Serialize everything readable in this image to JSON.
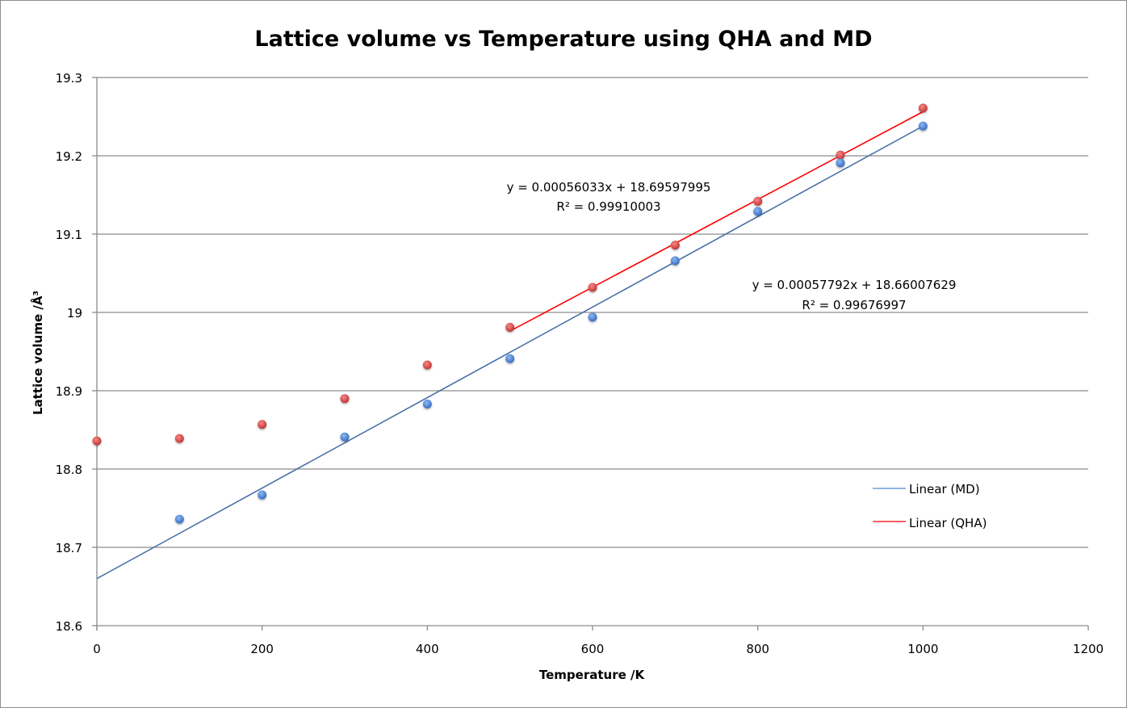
{
  "chart_data": {
    "type": "scatter",
    "title": "Lattice volume vs Temperature using QHA and MD",
    "xlabel": "Temperature /K",
    "ylabel": "Lattice volume /Å³",
    "xlim": [
      0,
      1200
    ],
    "ylim": [
      18.6,
      19.3
    ],
    "x_ticks": [
      0,
      200,
      400,
      600,
      800,
      1000,
      1200
    ],
    "x_tick_labels": [
      "0",
      "200",
      "400",
      "600",
      "800",
      "1000",
      "1200"
    ],
    "y_ticks": [
      18.6,
      18.7,
      18.8,
      18.9,
      19.0,
      19.1,
      19.2,
      19.3
    ],
    "y_tick_labels": [
      "18.6",
      "18.7",
      "18.8",
      "18.9",
      "19",
      "19.1",
      "19.2",
      "19.3"
    ],
    "grid": "horizontal",
    "legend_position": "right",
    "series": [
      {
        "name": "QHA",
        "color": "#d94c4c",
        "x": [
          0,
          100,
          200,
          300,
          400,
          500,
          600,
          700,
          800,
          900,
          1000
        ],
        "y": [
          18.836,
          18.839,
          18.857,
          18.89,
          18.933,
          18.981,
          19.032,
          19.086,
          19.142,
          19.201,
          19.261
        ]
      },
      {
        "name": "MD",
        "color": "#4f86d6",
        "x": [
          100,
          200,
          300,
          400,
          500,
          600,
          700,
          800,
          900,
          1000
        ],
        "y": [
          18.736,
          18.767,
          18.841,
          18.883,
          18.941,
          18.994,
          19.066,
          19.129,
          19.191,
          19.238
        ]
      }
    ],
    "trendlines": [
      {
        "name": "Linear (MD)",
        "color": "#4a72a8",
        "slope": 0.00057792,
        "intercept": 18.66007629,
        "x_range": [
          0,
          1000
        ],
        "equation": "y = 0.00057792x + 18.66007629",
        "r_squared": "R² = 0.99676997"
      },
      {
        "name": "Linear (QHA)",
        "color": "#ff0000",
        "slope": 0.00056033,
        "intercept": 18.69597995,
        "x_range": [
          500,
          1000
        ],
        "equation": "y = 0.00056033x + 18.69597995",
        "r_squared": "R² = 0.99910003"
      }
    ],
    "legend": [
      {
        "label": "Linear (MD)",
        "color": "#4a72a8"
      },
      {
        "label": "Linear (QHA)",
        "color": "#ff0000"
      }
    ]
  }
}
